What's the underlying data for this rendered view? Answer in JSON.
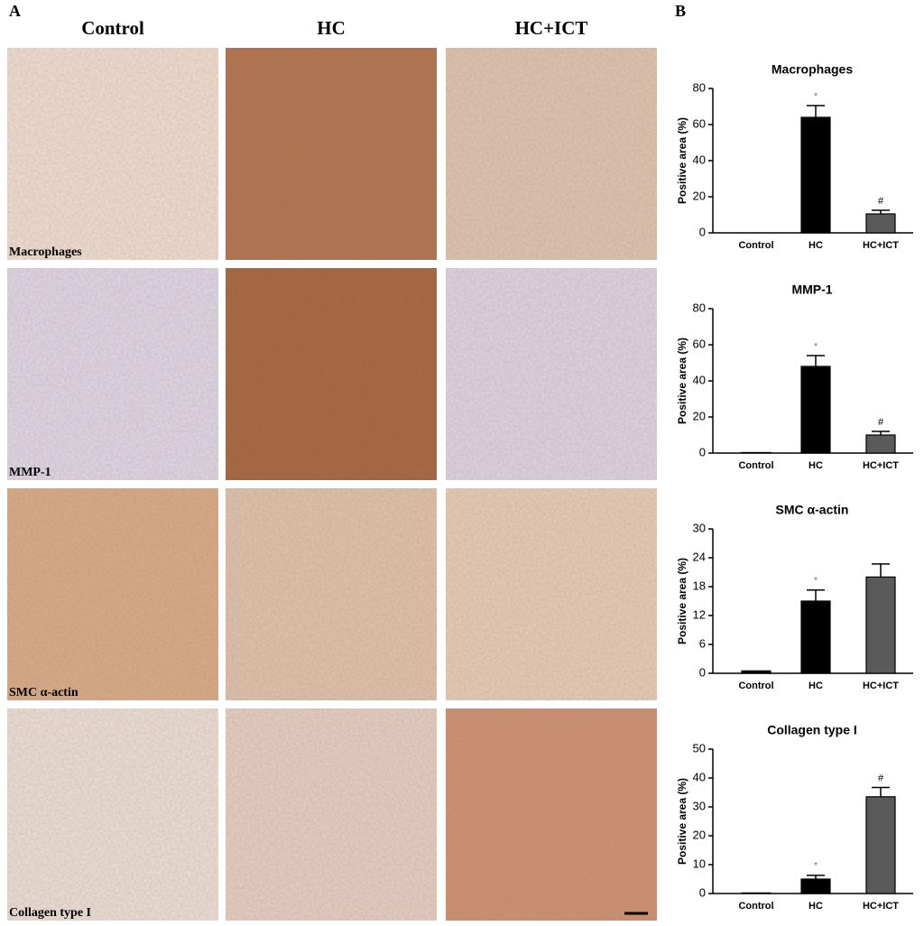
{
  "panel_a": {
    "label": "A",
    "columns": [
      "Control",
      "HC",
      "HC+ICT"
    ],
    "rows": [
      "Macrophages",
      "MMP-1",
      "SMC α-actin",
      "Collagen type I"
    ]
  },
  "panel_b_label": "B",
  "chart_data": [
    {
      "type": "bar",
      "title": "Macrophages",
      "y_label": "Positive area (%)",
      "categories": [
        "Control",
        "HC",
        "HC+ICT"
      ],
      "values": [
        0,
        64,
        10.5
      ],
      "errors": [
        0,
        6.5,
        2
      ],
      "markers": [
        null,
        "*",
        "#"
      ],
      "colors": [
        "#000000",
        "#000000",
        "#5a5a5a"
      ],
      "ylim": [
        0,
        80
      ],
      "yticks": [
        0,
        20,
        40,
        60,
        80
      ]
    },
    {
      "type": "bar",
      "title": "MMP-1",
      "y_label": "Positive area (%)",
      "categories": [
        "Control",
        "HC",
        "HC+ICT"
      ],
      "values": [
        0.3,
        48,
        10
      ],
      "errors": [
        0,
        6,
        2
      ],
      "markers": [
        null,
        "*",
        "#"
      ],
      "colors": [
        "#000000",
        "#000000",
        "#5a5a5a"
      ],
      "ylim": [
        0,
        80
      ],
      "yticks": [
        0,
        20,
        40,
        60,
        80
      ]
    },
    {
      "type": "bar",
      "title": "SMC α-actin",
      "y_label": "Positive area (%)",
      "categories": [
        "Control",
        "HC",
        "HC+ICT"
      ],
      "values": [
        0.5,
        15,
        20
      ],
      "errors": [
        0,
        2.3,
        2.7
      ],
      "markers": [
        null,
        "*",
        null
      ],
      "colors": [
        "#000000",
        "#000000",
        "#5a5a5a"
      ],
      "ylim": [
        0,
        30
      ],
      "yticks": [
        0,
        6,
        12,
        18,
        24,
        30
      ]
    },
    {
      "type": "bar",
      "title": "Collagen type I",
      "y_label": "Positive area (%)",
      "categories": [
        "Control",
        "HC",
        "HC+ICT"
      ],
      "values": [
        0.2,
        5,
        33.5
      ],
      "errors": [
        0,
        1.3,
        3.2
      ],
      "markers": [
        null,
        "*",
        "#"
      ],
      "colors": [
        "#000000",
        "#000000",
        "#5a5a5a"
      ],
      "ylim": [
        0,
        50
      ],
      "yticks": [
        0,
        10,
        20,
        30,
        40,
        50
      ]
    }
  ]
}
